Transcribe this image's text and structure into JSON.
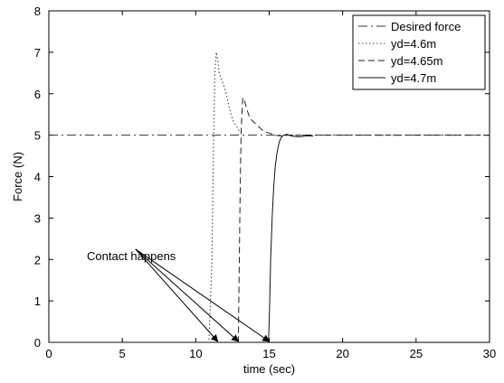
{
  "chart_data": {
    "type": "line",
    "title": "",
    "xlabel": "time (sec)",
    "ylabel": "Force (N)",
    "xlim": [
      0,
      30
    ],
    "ylim": [
      0,
      8
    ],
    "xticks": [
      "0",
      "5",
      "10",
      "15",
      "20",
      "25",
      "30"
    ],
    "yticks": [
      "0",
      "1",
      "2",
      "3",
      "4",
      "5",
      "6",
      "7",
      "8"
    ],
    "grid": false,
    "legend_position": "top-right",
    "series": [
      {
        "name": "Desired force",
        "style": "dash-dot",
        "x": [
          0,
          30
        ],
        "y": [
          5,
          5
        ]
      },
      {
        "name": "yd=4.6m",
        "style": "dotted",
        "x": [
          0,
          10.9,
          11.0,
          11.1,
          11.2,
          11.3,
          11.4,
          11.5,
          11.6,
          11.8,
          12.0,
          12.2,
          12.4,
          12.6,
          12.9,
          13.0
        ],
        "y": [
          0,
          0,
          1.0,
          2.0,
          4.5,
          6.5,
          7.0,
          6.8,
          6.5,
          6.3,
          6.1,
          5.8,
          5.5,
          5.3,
          5.15,
          5.05
        ]
      },
      {
        "name": "yd=4.65m",
        "style": "dash",
        "x": [
          0,
          12.9,
          12.95,
          13.0,
          13.05,
          13.1,
          13.2,
          13.3,
          13.5,
          13.7,
          14.0,
          14.3,
          14.6,
          15.0,
          15.4,
          15.8,
          16.2,
          30
        ],
        "y": [
          0,
          0,
          1.5,
          3.0,
          4.3,
          5.2,
          5.9,
          5.85,
          5.6,
          5.4,
          5.3,
          5.2,
          5.1,
          5.05,
          5.0,
          4.98,
          5.0,
          5.0
        ]
      },
      {
        "name": "yd=4.7m",
        "style": "solid",
        "x": [
          0,
          14.95,
          15.0,
          15.05,
          15.1,
          15.2,
          15.3,
          15.4,
          15.5,
          15.6,
          15.7,
          15.8,
          15.9,
          16.0,
          16.2,
          16.5,
          17.0,
          17.5,
          18.0
        ],
        "y": [
          0,
          0,
          0.5,
          1.2,
          2.0,
          3.0,
          3.7,
          4.2,
          4.5,
          4.7,
          4.85,
          4.93,
          4.98,
          5.0,
          5.02,
          4.98,
          4.96,
          4.98,
          4.98
        ]
      }
    ],
    "annotations": [
      {
        "text": "Contact happens",
        "arrow_targets": [
          [
            11.5,
            0
          ],
          [
            12.9,
            0
          ],
          [
            15.0,
            0
          ]
        ]
      }
    ]
  }
}
